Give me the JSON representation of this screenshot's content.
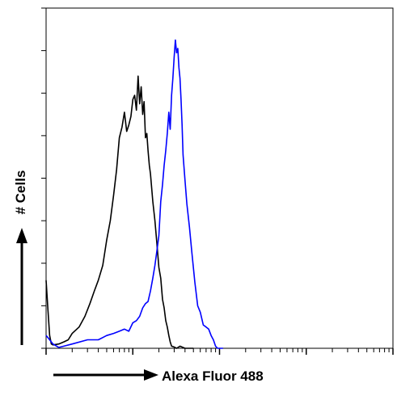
{
  "chart_data": {
    "type": "area",
    "xlabel": "Alexa Fluor 488",
    "ylabel": "# Cells",
    "x_scale": "log",
    "xlim": [
      1,
      10000
    ],
    "ylim": [
      0,
      8
    ],
    "grid": false,
    "series": [
      {
        "color": "#000000",
        "x": [
          1.0,
          1.05,
          1.1,
          1.15,
          1.2,
          1.4,
          1.6,
          1.8,
          2.0,
          2.4,
          2.8,
          3.2,
          3.6,
          4.0,
          4.5,
          5.0,
          5.5,
          6.0,
          6.5,
          7.0,
          7.5,
          8.0,
          8.5,
          9.0,
          9.5,
          10.0,
          10.5,
          11.0,
          11.5,
          12.0,
          12.5,
          13.0,
          13.5,
          14.0,
          14.5,
          15.0,
          15.5,
          16.0,
          17.0,
          18.0,
          19.0,
          20.0,
          21.0,
          22.0,
          23.0,
          24.0,
          25.0,
          26.0,
          27.0,
          28.0,
          30.0,
          32.0,
          35.0,
          40.0,
          45.0,
          50.0
        ],
        "y": [
          1.6,
          0.9,
          0.3,
          0.1,
          0.08,
          0.1,
          0.15,
          0.2,
          0.35,
          0.5,
          0.75,
          1.05,
          1.35,
          1.6,
          1.95,
          2.55,
          3.0,
          3.6,
          4.2,
          4.95,
          5.2,
          5.55,
          5.1,
          5.25,
          5.45,
          5.85,
          5.95,
          5.6,
          6.4,
          5.75,
          6.15,
          5.5,
          5.8,
          4.95,
          5.05,
          4.65,
          4.3,
          4.1,
          3.45,
          3.0,
          2.45,
          1.9,
          1.65,
          1.15,
          0.95,
          0.65,
          0.5,
          0.3,
          0.15,
          0.05,
          0.03,
          0.0,
          0.05,
          0.0,
          0.0,
          0.0
        ]
      },
      {
        "color": "#0000ff",
        "x": [
          1.0,
          1.05,
          1.1,
          1.2,
          1.4,
          1.6,
          2.0,
          3.0,
          4.0,
          5.0,
          6.0,
          7.0,
          8.0,
          9.0,
          10.0,
          11.0,
          12.0,
          13.0,
          14.0,
          15.0,
          16.0,
          17.0,
          18.0,
          19.0,
          20.0,
          21.0,
          22.0,
          23.0,
          24.0,
          25.0,
          26.0,
          27.0,
          28.0,
          29.0,
          30.0,
          31.0,
          32.0,
          33.0,
          34.0,
          35.0,
          36.0,
          37.0,
          38.0,
          40.0,
          42.0,
          45.0,
          48.0,
          52.0,
          56.0,
          60.0,
          65.0,
          70.0,
          75.0,
          80.0,
          85.0,
          90.0,
          95.0,
          100.0,
          110.0
        ],
        "y": [
          0.3,
          0.25,
          0.2,
          0.1,
          0.02,
          0.05,
          0.1,
          0.2,
          0.2,
          0.3,
          0.35,
          0.4,
          0.45,
          0.4,
          0.6,
          0.65,
          0.75,
          0.95,
          1.05,
          1.1,
          1.35,
          1.65,
          1.95,
          2.3,
          2.65,
          3.45,
          3.85,
          4.3,
          4.65,
          5.05,
          5.55,
          5.15,
          5.95,
          6.35,
          6.85,
          7.25,
          6.95,
          7.05,
          6.6,
          6.35,
          5.85,
          5.25,
          4.55,
          3.95,
          3.4,
          2.85,
          2.25,
          1.55,
          1.0,
          0.85,
          0.55,
          0.5,
          0.45,
          0.3,
          0.2,
          0.05,
          0.0,
          0.0,
          0.0
        ]
      }
    ]
  }
}
